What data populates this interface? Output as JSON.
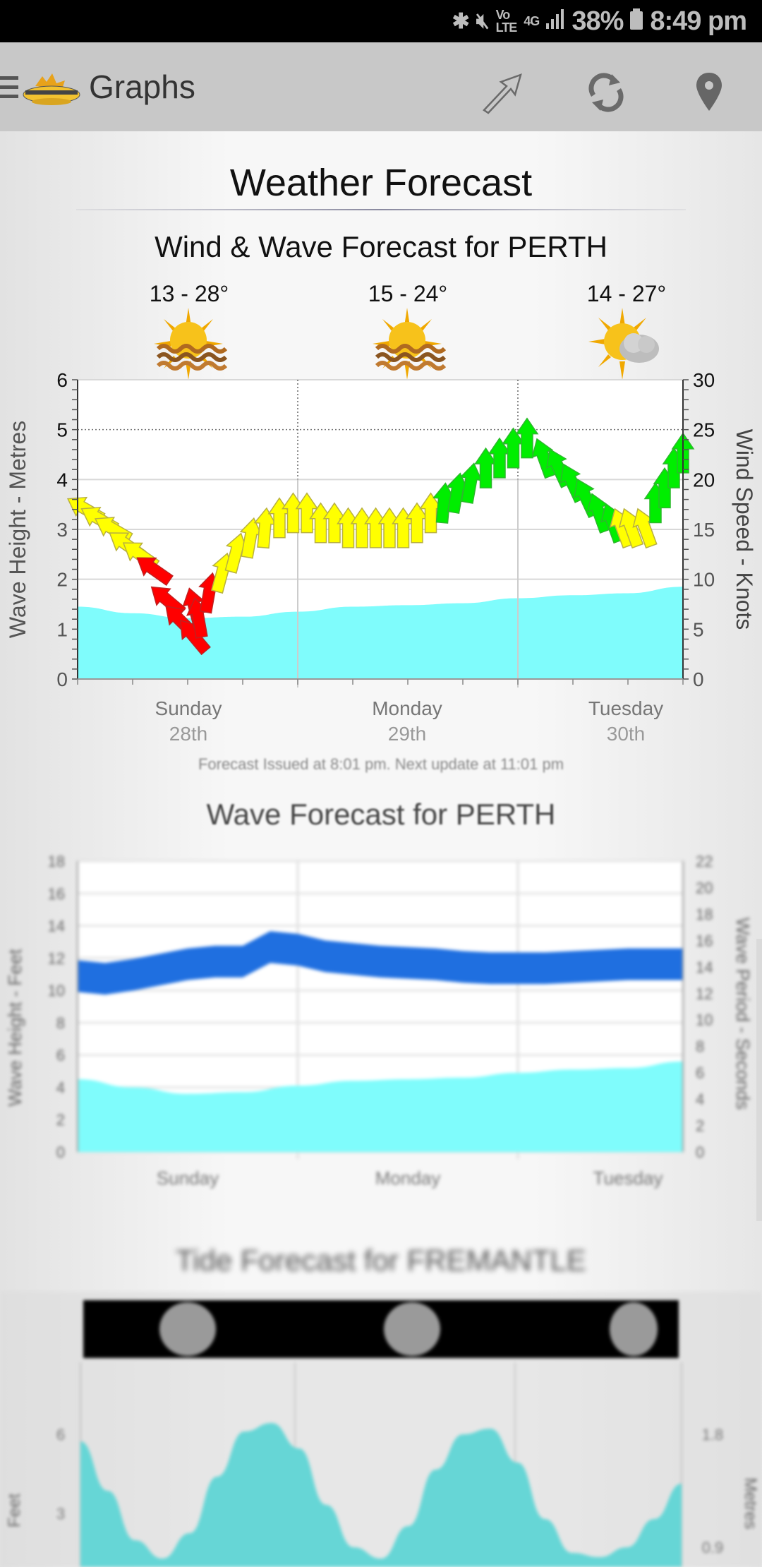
{
  "status_bar": {
    "icons": [
      "bluetooth-icon",
      "mute-icon",
      "volte-icon",
      "4g-icon",
      "signal-icon"
    ],
    "battery": "38%",
    "time": "8:49 pm"
  },
  "toolbar": {
    "title": "Graphs",
    "actions": [
      "share-arrow-icon",
      "refresh-icon",
      "location-pin-icon"
    ]
  },
  "page": {
    "title": "Weather Forecast"
  },
  "wind_wave": {
    "title": "Wind & Wave Forecast for PERTH",
    "days": [
      {
        "day": "Sunday",
        "date": "28th",
        "temp": "13 - 28°",
        "icon": "sunny-haze-icon"
      },
      {
        "day": "Monday",
        "date": "29th",
        "temp": "15 - 24°",
        "icon": "sunny-haze-icon"
      },
      {
        "day": "Tuesday",
        "date": "30th",
        "temp": "14 - 27°",
        "icon": "partly-cloudy-icon"
      }
    ],
    "issued": "Forecast Issued at 8:01 pm. Next update at 11:01 pm"
  },
  "wave": {
    "title": "Wave Forecast for PERTH",
    "days": [
      "Sunday",
      "Monday",
      "Tuesday"
    ]
  },
  "tide": {
    "title": "Tide Forecast for FREMANTLE"
  },
  "chart_data": [
    {
      "type": "area",
      "title": "Wind & Wave Forecast for PERTH",
      "ylabel": "Wave Height - Metres",
      "y2label": "Wind Speed - Knots",
      "ylim": [
        0,
        6
      ],
      "y2lim": [
        0,
        30
      ],
      "yticks": [
        "0",
        "1",
        "2",
        "3",
        "4",
        "5",
        "6"
      ],
      "y2ticks": [
        "0",
        "5",
        "10",
        "15",
        "20",
        "25",
        "30"
      ],
      "xlim_hours": [
        0,
        66
      ],
      "x_categories": [
        {
          "label": "Sunday",
          "sub": "28th",
          "hour": 12
        },
        {
          "label": "Monday",
          "sub": "29th",
          "hour": 36
        },
        {
          "label": "Tuesday",
          "sub": "30th",
          "hour": 60
        }
      ],
      "grid": true,
      "colors": {
        "wave": "#7ffcfc",
        "light": "#ff0000",
        "moderate": "#ffff00",
        "strong": "#00ee00"
      },
      "wave_height": {
        "hours": [
          0,
          6,
          12,
          18,
          24,
          30,
          36,
          42,
          48,
          54,
          60,
          66
        ],
        "values": [
          1.45,
          1.32,
          1.22,
          1.25,
          1.35,
          1.45,
          1.48,
          1.52,
          1.62,
          1.68,
          1.72,
          1.85
        ]
      },
      "wind": [
        {
          "hour": 0.0,
          "speed": 17.5,
          "dir": 300,
          "class": "moderate"
        },
        {
          "hour": 1.5,
          "speed": 16.5,
          "dir": 300,
          "class": "moderate"
        },
        {
          "hour": 3.0,
          "speed": 15.5,
          "dir": 300,
          "class": "moderate"
        },
        {
          "hour": 4.5,
          "speed": 14.0,
          "dir": 305,
          "class": "moderate"
        },
        {
          "hour": 6.0,
          "speed": 13.0,
          "dir": 305,
          "class": "moderate"
        },
        {
          "hour": 7.5,
          "speed": 11.5,
          "dir": 305,
          "class": "light"
        },
        {
          "hour": 9.0,
          "speed": 8.5,
          "dir": 310,
          "class": "light"
        },
        {
          "hour": 10.5,
          "speed": 6.5,
          "dir": 315,
          "class": "light"
        },
        {
          "hour": 12.0,
          "speed": 5.0,
          "dir": 320,
          "class": "light"
        },
        {
          "hour": 12.5,
          "speed": 8.0,
          "dir": 345,
          "class": "light"
        },
        {
          "hour": 13.0,
          "speed": 7.0,
          "dir": 350,
          "class": "light"
        },
        {
          "hour": 14.5,
          "speed": 9.5,
          "dir": 10,
          "class": "light"
        },
        {
          "hour": 16.0,
          "speed": 11.5,
          "dir": 15,
          "class": "moderate"
        },
        {
          "hour": 17.5,
          "speed": 13.5,
          "dir": 15,
          "class": "moderate"
        },
        {
          "hour": 19.0,
          "speed": 15.0,
          "dir": 10,
          "class": "moderate"
        },
        {
          "hour": 20.5,
          "speed": 16.0,
          "dir": 5,
          "class": "moderate"
        },
        {
          "hour": 22.0,
          "speed": 17.0,
          "dir": 0,
          "class": "moderate"
        },
        {
          "hour": 23.5,
          "speed": 17.5,
          "dir": 0,
          "class": "moderate"
        },
        {
          "hour": 25.0,
          "speed": 17.5,
          "dir": 0,
          "class": "moderate"
        },
        {
          "hour": 26.5,
          "speed": 16.5,
          "dir": 0,
          "class": "moderate"
        },
        {
          "hour": 28.0,
          "speed": 16.5,
          "dir": 0,
          "class": "moderate"
        },
        {
          "hour": 29.5,
          "speed": 16.0,
          "dir": 0,
          "class": "moderate"
        },
        {
          "hour": 31.0,
          "speed": 16.0,
          "dir": 0,
          "class": "moderate"
        },
        {
          "hour": 32.5,
          "speed": 16.0,
          "dir": 0,
          "class": "moderate"
        },
        {
          "hour": 34.0,
          "speed": 16.0,
          "dir": 0,
          "class": "moderate"
        },
        {
          "hour": 35.5,
          "speed": 16.0,
          "dir": 0,
          "class": "moderate"
        },
        {
          "hour": 37.0,
          "speed": 16.5,
          "dir": 0,
          "class": "moderate"
        },
        {
          "hour": 38.5,
          "speed": 17.5,
          "dir": 0,
          "class": "moderate"
        },
        {
          "hour": 40.0,
          "speed": 18.5,
          "dir": 5,
          "class": "strong"
        },
        {
          "hour": 41.5,
          "speed": 19.5,
          "dir": 10,
          "class": "strong"
        },
        {
          "hour": 43.0,
          "speed": 20.5,
          "dir": 10,
          "class": "strong"
        },
        {
          "hour": 44.5,
          "speed": 22.0,
          "dir": 0,
          "class": "strong"
        },
        {
          "hour": 46.0,
          "speed": 23.0,
          "dir": 0,
          "class": "strong"
        },
        {
          "hour": 47.5,
          "speed": 24.0,
          "dir": 0,
          "class": "strong"
        },
        {
          "hour": 49.0,
          "speed": 25.0,
          "dir": 0,
          "class": "strong"
        },
        {
          "hour": 50.5,
          "speed": 23.0,
          "dir": 340,
          "class": "strong"
        },
        {
          "hour": 52.0,
          "speed": 22.0,
          "dir": 335,
          "class": "strong"
        },
        {
          "hour": 53.5,
          "speed": 20.5,
          "dir": 335,
          "class": "strong"
        },
        {
          "hour": 55.0,
          "speed": 19.0,
          "dir": 335,
          "class": "strong"
        },
        {
          "hour": 56.5,
          "speed": 17.5,
          "dir": 340,
          "class": "strong"
        },
        {
          "hour": 58.0,
          "speed": 16.5,
          "dir": 340,
          "class": "strong"
        },
        {
          "hour": 59.0,
          "speed": 16.0,
          "dir": 340,
          "class": "moderate"
        },
        {
          "hour": 60.0,
          "speed": 16.0,
          "dir": 340,
          "class": "moderate"
        },
        {
          "hour": 61.5,
          "speed": 16.0,
          "dir": 340,
          "class": "moderate"
        },
        {
          "hour": 63.0,
          "speed": 18.5,
          "dir": 0,
          "class": "strong"
        },
        {
          "hour": 64.0,
          "speed": 20.0,
          "dir": 0,
          "class": "strong"
        },
        {
          "hour": 65.0,
          "speed": 22.0,
          "dir": 0,
          "class": "strong"
        },
        {
          "hour": 66.0,
          "speed": 23.5,
          "dir": 0,
          "class": "strong"
        }
      ]
    },
    {
      "type": "area",
      "title": "Wave Forecast for PERTH",
      "ylabel": "Wave Height - Feet",
      "y2label": "Wave Period - Seconds",
      "ylim": [
        0,
        18
      ],
      "y2lim": [
        0,
        22
      ],
      "yticks": [
        "0",
        "2",
        "4",
        "6",
        "8",
        "10",
        "12",
        "14",
        "16",
        "18"
      ],
      "y2ticks": [
        "0",
        "2",
        "4",
        "6",
        "8",
        "10",
        "12",
        "14",
        "16",
        "18",
        "20",
        "22"
      ],
      "xlim_hours": [
        0,
        66
      ],
      "x_categories": [
        {
          "label": "Sunday",
          "hour": 12
        },
        {
          "label": "Monday",
          "hour": 36
        },
        {
          "label": "Tuesday",
          "hour": 60
        }
      ],
      "grid": true,
      "colors": {
        "wave": "#7ffcfc",
        "period": "#1f6fe0"
      },
      "wave_height_ft": {
        "hours": [
          0,
          6,
          12,
          18,
          24,
          30,
          36,
          42,
          48,
          54,
          60,
          66
        ],
        "values": [
          4.5,
          4.0,
          3.6,
          3.7,
          4.1,
          4.4,
          4.5,
          4.6,
          4.9,
          5.1,
          5.2,
          5.6
        ]
      },
      "wave_period_s": {
        "hours": [
          0,
          3,
          6,
          9,
          12,
          15,
          18,
          21,
          24,
          27,
          30,
          33,
          36,
          39,
          42,
          45,
          48,
          51,
          54,
          57,
          60,
          63,
          66
        ],
        "values": [
          13.3,
          13.1,
          13.4,
          13.8,
          14.2,
          14.4,
          14.4,
          15.5,
          15.3,
          14.8,
          14.6,
          14.4,
          14.3,
          14.2,
          14.0,
          13.9,
          13.9,
          13.9,
          14.0,
          14.1,
          14.2,
          14.2,
          14.2
        ]
      }
    },
    {
      "type": "area",
      "title": "Tide Forecast for FREMANTLE",
      "ylabel": "Feet",
      "y2label": "Metres",
      "yticks": [
        "3",
        "6"
      ],
      "y2ticks": [
        "0.9",
        "1.8"
      ],
      "colors": {
        "tide": "#66d6d6",
        "moon_strip": "#000000"
      },
      "moon_phases": 3,
      "tide_height_rel": {
        "hours": [
          0,
          3,
          6,
          9,
          12,
          15,
          18,
          21,
          24,
          27,
          30,
          33,
          36,
          39,
          42,
          45,
          48,
          51,
          54,
          57,
          60,
          63,
          66
        ],
        "values": [
          0.85,
          0.5,
          0.15,
          0.02,
          0.2,
          0.6,
          0.92,
          0.98,
          0.8,
          0.4,
          0.1,
          0.02,
          0.25,
          0.65,
          0.9,
          0.94,
          0.7,
          0.3,
          0.06,
          0.03,
          0.1,
          0.3,
          0.55
        ]
      }
    }
  ]
}
